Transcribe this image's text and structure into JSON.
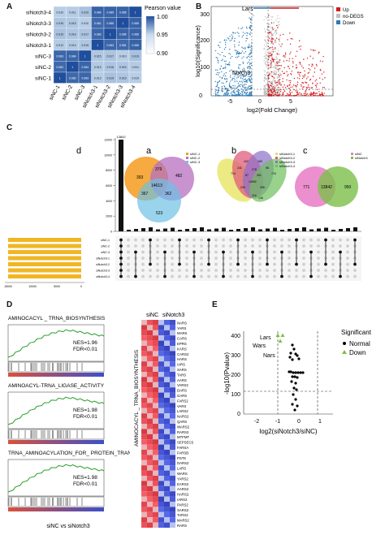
{
  "panels": {
    "A": "A",
    "B": "B",
    "C": "C",
    "D": "D",
    "E": "E"
  },
  "panelA": {
    "rows": [
      "siNotch3-4",
      "siNotch3-3",
      "siNotch3-2",
      "siNotch3-1",
      "siNC-3",
      "siNC-2",
      "siNC-1"
    ],
    "cols": [
      "siNC-1",
      "siNC-2",
      "siNC-3",
      "siNotch3-1",
      "siNotch3-2",
      "siNotch3-3",
      "siNotch3-4"
    ],
    "cells": [
      [
        "0.910",
        "0.911",
        "0.919",
        "0.986",
        "0.985",
        "0.985",
        "1"
      ],
      [
        "0.916",
        "0.915",
        "0.910",
        "0.981",
        "0.985",
        "1",
        "0.985"
      ],
      [
        "0.919",
        "0.916",
        "0.917",
        "0.983",
        "1",
        "0.985",
        "0.985"
      ],
      [
        "0.912",
        "0.913",
        "0.915",
        "1",
        "0.983",
        "0.981",
        "0.986"
      ],
      [
        "0.983",
        "0.984",
        "1",
        "0.915",
        "0.917",
        "0.910",
        "0.919"
      ],
      [
        "0.982",
        "1",
        "0.984",
        "0.913",
        "0.916",
        "0.915",
        "0.911"
      ],
      [
        "1",
        "0.982",
        "0.983",
        "0.912",
        "0.919",
        "0.916",
        "0.910"
      ]
    ],
    "legend_title": "Pearson value",
    "legend_ticks": [
      "1.00",
      "0.95",
      "0.90"
    ]
  },
  "panelB": {
    "ylabel": "log10(Significance)",
    "xlabel": "log2(Fold Change)",
    "xticks": [
      "-5",
      "0",
      "5"
    ],
    "yticks": [
      "0",
      "100",
      "200",
      "300"
    ],
    "legend": [
      {
        "label": "Up",
        "color": "#d7191c"
      },
      {
        "label": "no-DEGS",
        "color": "#bfbfbf"
      },
      {
        "label": "Down",
        "color": "#2c7bb6"
      }
    ],
    "annotations": [
      "Lars",
      "Notch3"
    ]
  },
  "panelC": {
    "sub_labels": [
      "d",
      "a",
      "b",
      "c"
    ],
    "venn_a": {
      "legend": [
        "siNC-1",
        "siNC-2",
        "siNC-3"
      ],
      "values": [
        "393",
        "379",
        "482",
        "14613",
        "367",
        "362",
        "523"
      ]
    },
    "venn_b": {
      "legend": [
        "siNotch3-1",
        "siNotch3-2",
        "siNotch3-3",
        "siNotch3-4"
      ],
      "values": [
        "422",
        "265",
        "713",
        "278",
        "14052",
        "230",
        "336",
        "713",
        "116",
        "146",
        "241",
        "98",
        "87",
        "301"
      ]
    },
    "venn_c": {
      "legend": [
        "siNC",
        "siNotch3"
      ],
      "values": [
        "771",
        "13842",
        "950"
      ]
    },
    "bar_top": "13842",
    "bar_yticks": [
      "12000",
      "10000",
      "8000",
      "6000",
      "4000",
      "2000",
      "0"
    ],
    "set_names": [
      "siNC-1",
      "siNC-2",
      "siNC-3",
      "siNotch3-1",
      "siNotch3-2",
      "siNotch3-3",
      "siNotch3-4"
    ],
    "set_axis": [
      "15000",
      "10000",
      "5000",
      "0"
    ]
  },
  "panelD": {
    "gsea": [
      {
        "title": "AMINOCACYL _ TRNA_BIOSYNTHESIS",
        "nes": "NES=1.96",
        "fdr": "FDR<0.01"
      },
      {
        "title": "AMINOACYL-TRNA_LIGASE_ACTIVITY",
        "nes": "NES=1.98",
        "fdr": "FDR<0.01"
      },
      {
        "title": "TRNA_AMINOACYLATION_FOR_ PROTEIN_TRANSLATION",
        "nes": "NES=1.98",
        "fdr": "FDR<0.01"
      }
    ],
    "xlabel": "siNC vs siNotch3",
    "heat_groups": [
      "siNC",
      "siNotch3"
    ],
    "heat_side": "AMINOCACYL _ TRNA_BIOSYNTHESIS",
    "genes": [
      "NARS",
      "YARS",
      "MARS",
      "CARS",
      "EPRS",
      "KARS",
      "CARS2",
      "HARS",
      "IARS",
      "SARS",
      "TARS",
      "AARS",
      "VARS2",
      "DARS",
      "GARS",
      "FARS2",
      "VARS",
      "LARS2",
      "NARS2",
      "QARS",
      "WARS2",
      "RARS2",
      "MTFMT",
      "SEPSECS",
      "FARSA",
      "FARSB",
      "PSTK",
      "DARS2",
      "LARS",
      "WARS",
      "YARS2",
      "EARS2",
      "AARS2",
      "HARS2",
      "IARS2",
      "PARS2",
      "SARS2",
      "TARS2",
      "MARS2",
      "RARS"
    ]
  },
  "panelE": {
    "ylabel": "-log10(Pvalue)",
    "xlabel": "log2(siNotch3/siNC)",
    "yticks": [
      "0",
      "100",
      "200",
      "300",
      "400"
    ],
    "xticks": [
      "-2",
      "-1",
      "0",
      "1"
    ],
    "labels": [
      "Lars",
      "Wars",
      "Nars"
    ],
    "legend_title": "Significant",
    "legend": [
      "Normal",
      "Down"
    ],
    "colors": {
      "down": "#7bc043",
      "normal": "#000000"
    }
  }
}
